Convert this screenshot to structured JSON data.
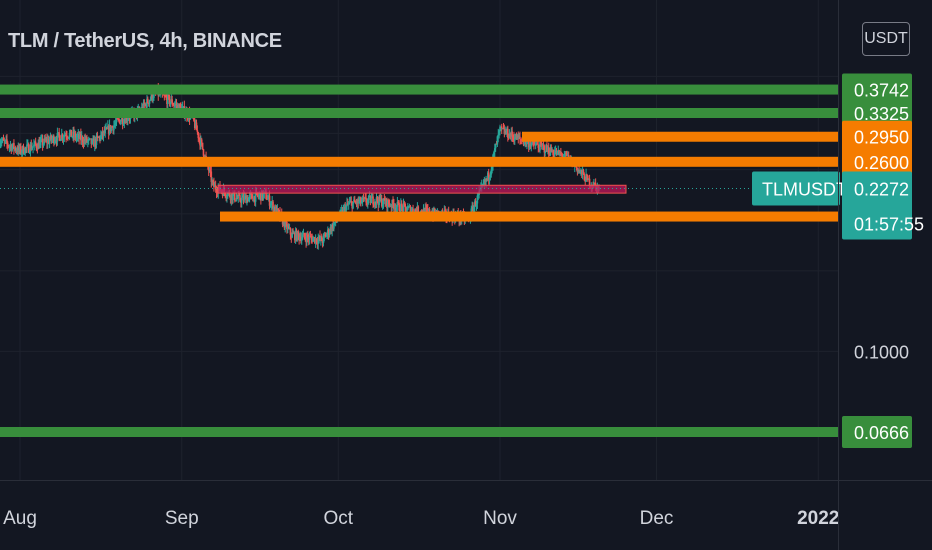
{
  "header": {
    "symbol_title": "TLM / TetherUS, 4h, BINANCE",
    "currency_button": "USDT"
  },
  "chart_data": {
    "type": "candlestick",
    "symbol": "TLMUSDT",
    "interval": "4h",
    "exchange": "BINANCE",
    "x_ticks": [
      "Aug",
      "Sep",
      "Oct",
      "Nov",
      "Dec",
      "2022"
    ],
    "y_ticks": [
      "0.1000"
    ],
    "current_price": {
      "symbol": "TLMUSDT",
      "value": "0.2272",
      "countdown": "01:57:55"
    },
    "price_path": [
      {
        "date": "2021-07-28",
        "price": 0.29
      },
      {
        "date": "2021-08-01",
        "price": 0.275
      },
      {
        "date": "2021-08-05",
        "price": 0.285
      },
      {
        "date": "2021-08-10",
        "price": 0.3
      },
      {
        "date": "2021-08-15",
        "price": 0.285
      },
      {
        "date": "2021-08-20",
        "price": 0.32
      },
      {
        "date": "2021-08-24",
        "price": 0.335
      },
      {
        "date": "2021-08-27",
        "price": 0.37
      },
      {
        "date": "2021-08-31",
        "price": 0.345
      },
      {
        "date": "2021-09-03",
        "price": 0.325
      },
      {
        "date": "2021-09-07",
        "price": 0.23
      },
      {
        "date": "2021-09-12",
        "price": 0.215
      },
      {
        "date": "2021-09-17",
        "price": 0.22
      },
      {
        "date": "2021-09-22",
        "price": 0.18
      },
      {
        "date": "2021-09-28",
        "price": 0.175
      },
      {
        "date": "2021-10-03",
        "price": 0.21
      },
      {
        "date": "2021-10-08",
        "price": 0.215
      },
      {
        "date": "2021-10-14",
        "price": 0.205
      },
      {
        "date": "2021-10-20",
        "price": 0.2
      },
      {
        "date": "2021-10-26",
        "price": 0.195
      },
      {
        "date": "2021-10-30",
        "price": 0.245
      },
      {
        "date": "2021-11-01",
        "price": 0.305
      },
      {
        "date": "2021-11-05",
        "price": 0.29
      },
      {
        "date": "2021-11-09",
        "price": 0.28
      },
      {
        "date": "2021-11-14",
        "price": 0.265
      },
      {
        "date": "2021-11-18",
        "price": 0.235
      },
      {
        "date": "2021-11-20",
        "price": 0.2272
      }
    ],
    "horizontal_levels": [
      {
        "value": "0.3742",
        "color": "#388e3c",
        "style": "full"
      },
      {
        "value": "0.3325",
        "color": "#388e3c",
        "style": "full"
      },
      {
        "value": "0.2950",
        "color": "#f57c00",
        "style": "segment"
      },
      {
        "value": "0.2600",
        "color": "#f57c00",
        "style": "full"
      },
      {
        "value": "0.1973",
        "color": "#f57c00",
        "style": "segment"
      },
      {
        "value": "0.0666",
        "color": "#388e3c",
        "style": "full"
      }
    ],
    "zones": [
      {
        "from": 0.222,
        "to": 0.231,
        "color": "#c2185b"
      }
    ],
    "colors": {
      "background": "#131722",
      "up": "#26a69a",
      "down": "#ef5350",
      "axis_text": "#d1d4dc",
      "current_price_label": "#26a69a",
      "grid": "#1e222d"
    },
    "grid": true
  }
}
